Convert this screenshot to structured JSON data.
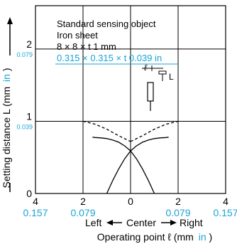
{
  "chart_data": {
    "type": "line",
    "title": "",
    "xlabel": "Operating point ℓ (mm",
    "xlabel_unit_alt": "in",
    "xlabel_close": ")",
    "ylabel": "Setting distance L (mm",
    "ylabel_unit_alt": "in",
    "ylabel_close": ")",
    "xlim": [
      -4,
      4
    ],
    "ylim": [
      0,
      2.6
    ],
    "grid": true,
    "x_ticks": [
      {
        "value": -4,
        "label": "4",
        "label_in": "0.157"
      },
      {
        "value": -2,
        "label": "2",
        "label_in": "0.079"
      },
      {
        "value": 0,
        "label": "0",
        "label_in": ""
      },
      {
        "value": 2,
        "label": "2",
        "label_in": "0.079"
      },
      {
        "value": 4,
        "label": "4",
        "label_in": "0.157"
      }
    ],
    "y_ticks": [
      {
        "value": 0,
        "label": "0",
        "label_in": ""
      },
      {
        "value": 1,
        "label": "1",
        "label_in": "0.039"
      },
      {
        "value": 2,
        "label": "2",
        "label_in": "0.079"
      }
    ],
    "direction_labels": {
      "left": "Left",
      "center": "Center",
      "right": "Right"
    },
    "annotation": {
      "line1": "Standard sensing object",
      "line2": "Iron sheet",
      "line3": "8 × 8 × t 1 mm",
      "line4": "0.315 × 0.315 × t 0.039 in"
    },
    "inset_labels": {
      "ell": "ℓ",
      "L": "L"
    },
    "series": [
      {
        "style": "solid",
        "x": [
          -1.0,
          -0.75,
          -0.5,
          -0.25,
          0.0,
          0.25,
          0.5,
          0.75,
          1.0,
          1.25,
          1.5,
          1.6
        ],
        "y": [
          0.0,
          0.18,
          0.34,
          0.48,
          0.59,
          0.66,
          0.71,
          0.74,
          0.76,
          0.77,
          0.775,
          0.78
        ]
      },
      {
        "style": "solid",
        "x": [
          -1.6,
          -1.5,
          -1.25,
          -1.0,
          -0.75,
          -0.5,
          -0.25,
          0.0,
          0.25,
          0.5,
          0.75,
          1.0
        ],
        "y": [
          0.78,
          0.775,
          0.77,
          0.76,
          0.74,
          0.71,
          0.66,
          0.59,
          0.48,
          0.34,
          0.18,
          0.0
        ]
      },
      {
        "style": "dashed",
        "x": [
          -2.0,
          -1.5,
          -1.0,
          -0.5,
          0.0
        ],
        "y": [
          1.0,
          0.96,
          0.89,
          0.8,
          0.72
        ]
      },
      {
        "style": "dashed",
        "x": [
          0.0,
          0.5,
          1.0,
          1.5,
          2.0
        ],
        "y": [
          0.72,
          0.8,
          0.89,
          0.96,
          1.0
        ]
      }
    ],
    "colors": {
      "axis": "#000000",
      "grid": "#000000",
      "curve": "#000000",
      "accent": "#1aa3d6"
    }
  }
}
